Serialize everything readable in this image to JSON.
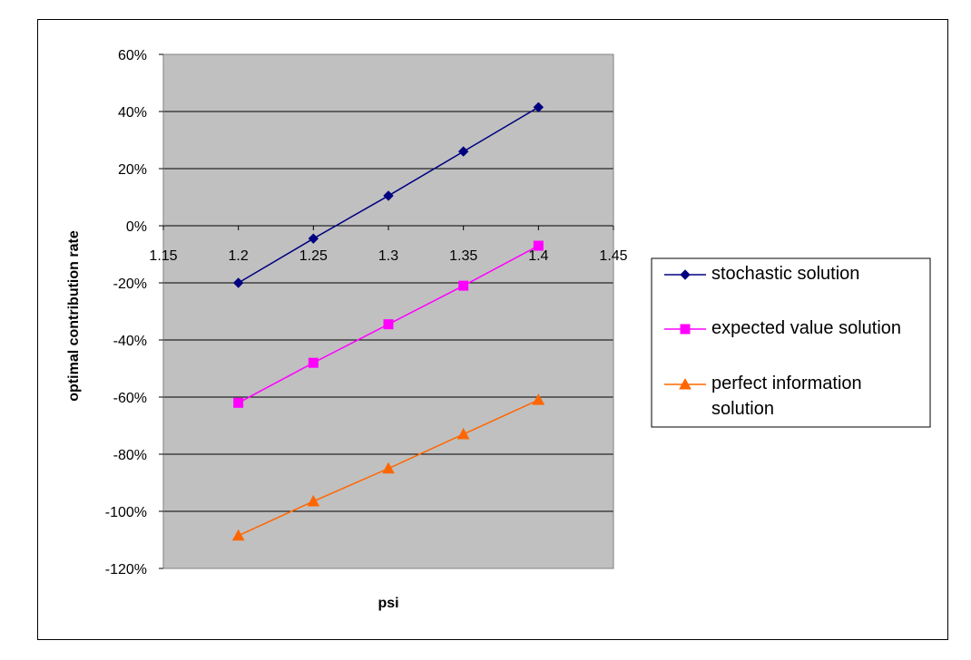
{
  "chart_data": {
    "type": "line",
    "xlabel": "psi",
    "ylabel": "optimal contribution rate",
    "xlim": [
      1.15,
      1.45
    ],
    "ylim": [
      -120,
      60
    ],
    "x_ticks": [
      "1.15",
      "1.2",
      "1.25",
      "1.3",
      "1.35",
      "1.4",
      "1.45"
    ],
    "x_tick_values": [
      1.15,
      1.2,
      1.25,
      1.3,
      1.35,
      1.4,
      1.45
    ],
    "y_ticks": [
      "60%",
      "40%",
      "20%",
      "0%",
      "-20%",
      "-40%",
      "-60%",
      "-80%",
      "-100%",
      "-120%"
    ],
    "y_tick_values": [
      60,
      40,
      20,
      0,
      -20,
      -40,
      -60,
      -80,
      -100,
      -120
    ],
    "x": [
      1.2,
      1.25,
      1.3,
      1.35,
      1.4
    ],
    "grid": "horizontal",
    "plot_background": "#c0c0c0",
    "legend_position": "right",
    "series": [
      {
        "name": "stochastic solution",
        "marker": "diamond",
        "color": "#000080",
        "values": [
          -20,
          -4.5,
          10.5,
          26,
          41.5
        ]
      },
      {
        "name": "expected value solution",
        "marker": "square",
        "color": "#ff00ff",
        "values": [
          -62,
          -48,
          -34.5,
          -21,
          -7
        ]
      },
      {
        "name": "perfect information solution",
        "marker": "triangle",
        "color": "#ff6600",
        "values": [
          -108.5,
          -96.5,
          -85,
          -73,
          -61
        ]
      }
    ]
  }
}
